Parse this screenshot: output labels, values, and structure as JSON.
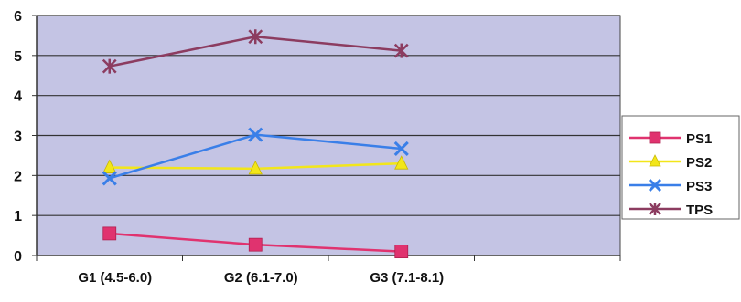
{
  "chart_data": {
    "type": "line",
    "categories": [
      "G1 (4.5-6.0)",
      "G2 (6.1-7.0)",
      "G3 (7.1-8.1)"
    ],
    "ylim": [
      0,
      6
    ],
    "yticks": [
      0,
      1,
      2,
      3,
      4,
      5,
      6
    ],
    "grid": true,
    "legend_position": "right",
    "plot_background": "#c4c4e4",
    "series": [
      {
        "name": "PS1",
        "values": [
          0.55,
          0.27,
          0.1
        ],
        "color": "#e0336f",
        "marker": "square"
      },
      {
        "name": "PS2",
        "values": [
          2.2,
          2.17,
          2.3
        ],
        "color": "#f2e61a",
        "marker": "triangle"
      },
      {
        "name": "PS3",
        "values": [
          1.93,
          3.02,
          2.67
        ],
        "color": "#3a7fe8",
        "marker": "x"
      },
      {
        "name": "TPS",
        "values": [
          4.73,
          5.47,
          5.12
        ],
        "color": "#8c3c60",
        "marker": "star"
      }
    ]
  }
}
